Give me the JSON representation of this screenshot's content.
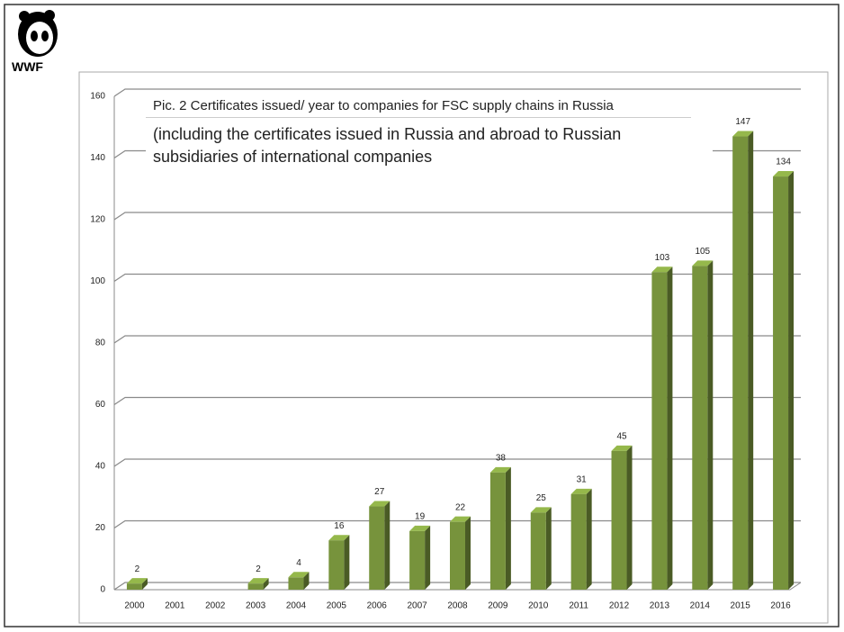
{
  "logo": "WWF",
  "chart_data": {
    "type": "bar",
    "title": "Pic. 2 Certificates issued/ year to companies for FSC supply chains in Russia",
    "subtitle": "(including the certificates issued in Russia and abroad to Russian subsidiaries of international companies",
    "categories": [
      "2000",
      "2001",
      "2002",
      "2003",
      "2004",
      "2005",
      "2006",
      "2007",
      "2008",
      "2009",
      "2010",
      "2011",
      "2012",
      "2013",
      "2014",
      "2015",
      "2016"
    ],
    "values": [
      2,
      null,
      null,
      2,
      4,
      16,
      27,
      19,
      22,
      38,
      25,
      31,
      45,
      103,
      105,
      147,
      134
    ],
    "color": "#77933c",
    "ylim": [
      0,
      160
    ],
    "yticks": [
      0,
      20,
      40,
      60,
      80,
      100,
      120,
      140,
      160
    ],
    "grid": true
  }
}
